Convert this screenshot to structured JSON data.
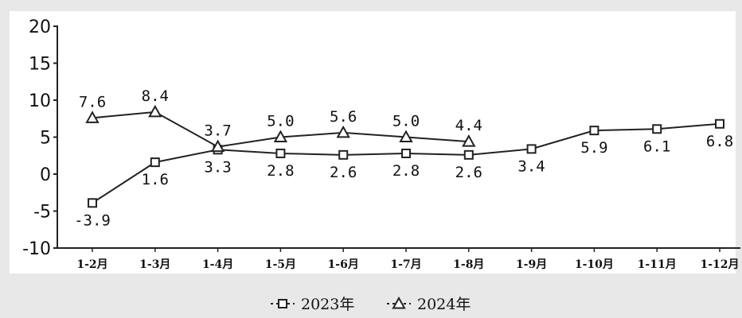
{
  "chart_data": {
    "type": "line",
    "categories": [
      "1-2月",
      "1-3月",
      "1-4月",
      "1-5月",
      "1-6月",
      "1-7月",
      "1-8月",
      "1-9月",
      "1-10月",
      "1-11月",
      "1-12月"
    ],
    "series": [
      {
        "name": "2023年",
        "marker": "square",
        "values": [
          -3.9,
          1.6,
          3.3,
          2.8,
          2.6,
          2.8,
          2.6,
          3.4,
          5.9,
          6.1,
          6.8
        ]
      },
      {
        "name": "2024年",
        "marker": "triangle",
        "values": [
          7.6,
          8.4,
          3.7,
          5.0,
          5.6,
          5.0,
          4.4,
          null,
          null,
          null,
          null
        ]
      }
    ],
    "yticks": [
      -10,
      -5,
      0,
      5,
      10,
      15,
      20
    ],
    "ylim": [
      -10,
      20
    ],
    "grid": false,
    "legend": "bottom",
    "title": "",
    "xlabel": "",
    "ylabel": "",
    "colors": {
      "background": "#e8e8e8",
      "plot_area": "#ffffff",
      "line": "#222222"
    }
  }
}
